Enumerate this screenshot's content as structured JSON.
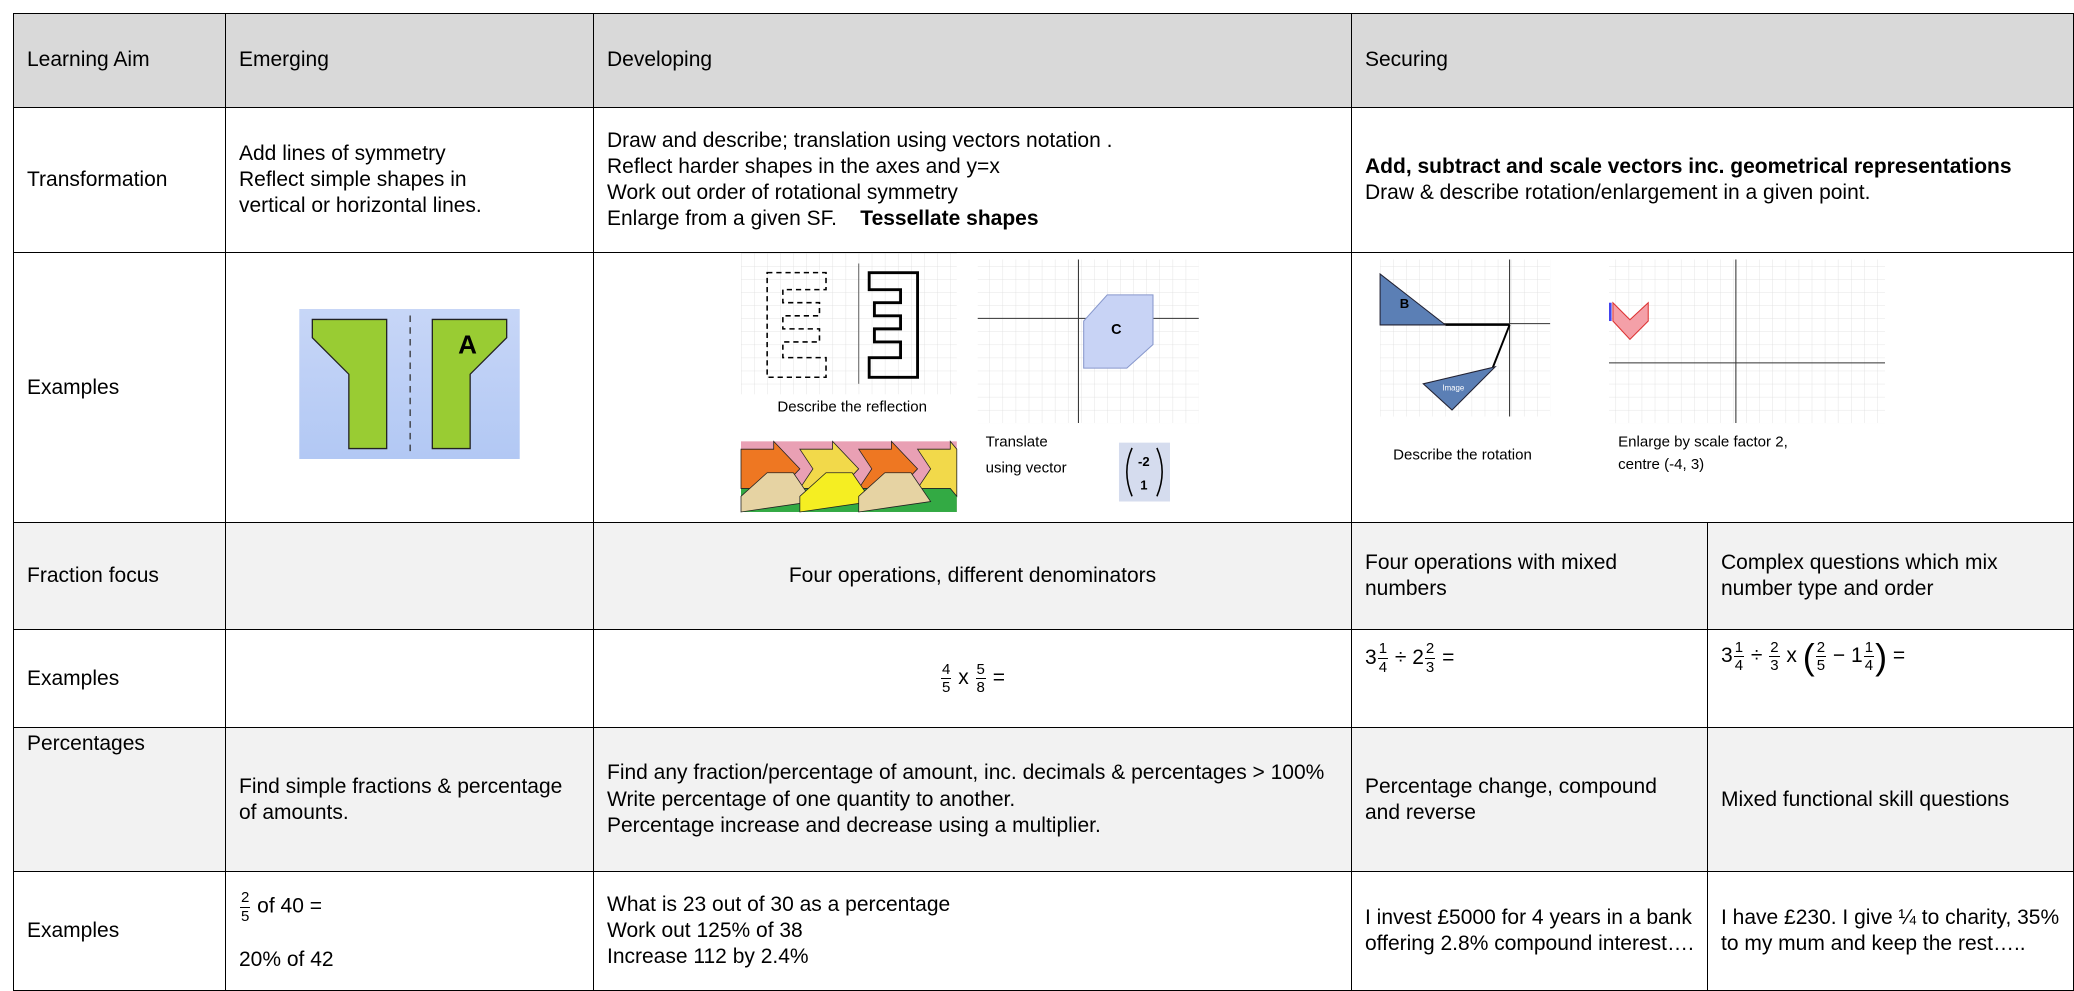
{
  "header": {
    "learning_aim": "Learning Aim",
    "emerging": "Emerging",
    "developing": "Developing",
    "securing": "Securing"
  },
  "transformation": {
    "label": "Transformation",
    "emerging": [
      "Add lines of symmetry",
      "Reflect simple shapes in",
      "vertical or horizontal lines."
    ],
    "developing": [
      "Draw and describe;  translation using vectors notation .",
      "Reflect harder shapes in the axes and y=x",
      "Work out order of rotational symmetry",
      "Enlarge from a given SF."
    ],
    "developing_bold": "Tessellate shapes",
    "securing_bold": "Add, subtract and scale vectors inc. geometrical representations",
    "securing": "Draw & describe rotation/enlargement in a given point."
  },
  "transformation_examples": {
    "label": "Examples",
    "emerging_shape_label": "A",
    "developing_reflection_caption": "Describe the reflection",
    "developing_translation_caption": [
      "Translate",
      "using vector"
    ],
    "translation_shape_label": "C",
    "vector": [
      "-2",
      "1"
    ],
    "securing_rotation_caption": "Describe the rotation",
    "rotation_shape_label": "B",
    "rotation_image_label": "Image",
    "securing_enlargement_caption": [
      "Enlarge by scale factor 2,",
      "centre (-4, 3)"
    ]
  },
  "fraction_focus": {
    "label": "Fraction focus",
    "developing": "Four operations, different denominators",
    "securing": "Four operations with mixed numbers",
    "securing_extension": "Complex questions which mix number type and order"
  },
  "fraction_examples": {
    "label": "Examples",
    "developing": [
      {
        "n": "4",
        "d": "5"
      },
      " x ",
      {
        "n": "5",
        "d": "8"
      },
      " ="
    ],
    "securing": [
      {
        "w": "3",
        "n": "1",
        "d": "4"
      },
      " ÷ ",
      {
        "w": "2",
        "n": "2",
        "d": "3"
      },
      " ="
    ],
    "securing_extension": [
      {
        "w": "3",
        "n": "1",
        "d": "4"
      },
      " ÷ ",
      {
        "n": "2",
        "d": "3"
      },
      " x ",
      "(",
      {
        "n": "2",
        "d": "5"
      },
      " − ",
      {
        "w": "1",
        "n": "1",
        "d": "4"
      },
      ")",
      " ="
    ]
  },
  "percentages": {
    "label": "Percentages",
    "emerging": "Find simple fractions & percentage of amounts.",
    "developing": [
      "Find any fraction/percentage of amount, inc. decimals & percentages > 100%",
      "Write percentage of one quantity to another.",
      "Percentage increase and decrease using a multiplier."
    ],
    "securing": "Percentage change, compound and reverse",
    "securing_extension": "Mixed functional skill questions"
  },
  "percentage_examples": {
    "label": "Examples",
    "emerging": [
      {
        "n": "2",
        "d": "5"
      },
      " of 40 ="
    ],
    "emerging_2": "20% of 42",
    "developing": [
      "What is 23 out of 30 as a percentage",
      "Work out 125% of 38",
      "Increase 112 by 2.4%"
    ],
    "securing": "I invest £5000 for 4 years in a bank offering 2.8% compound interest….",
    "securing_extension": "I have £230.  I give ¼ to charity, 35% to my mum and keep the rest….."
  }
}
